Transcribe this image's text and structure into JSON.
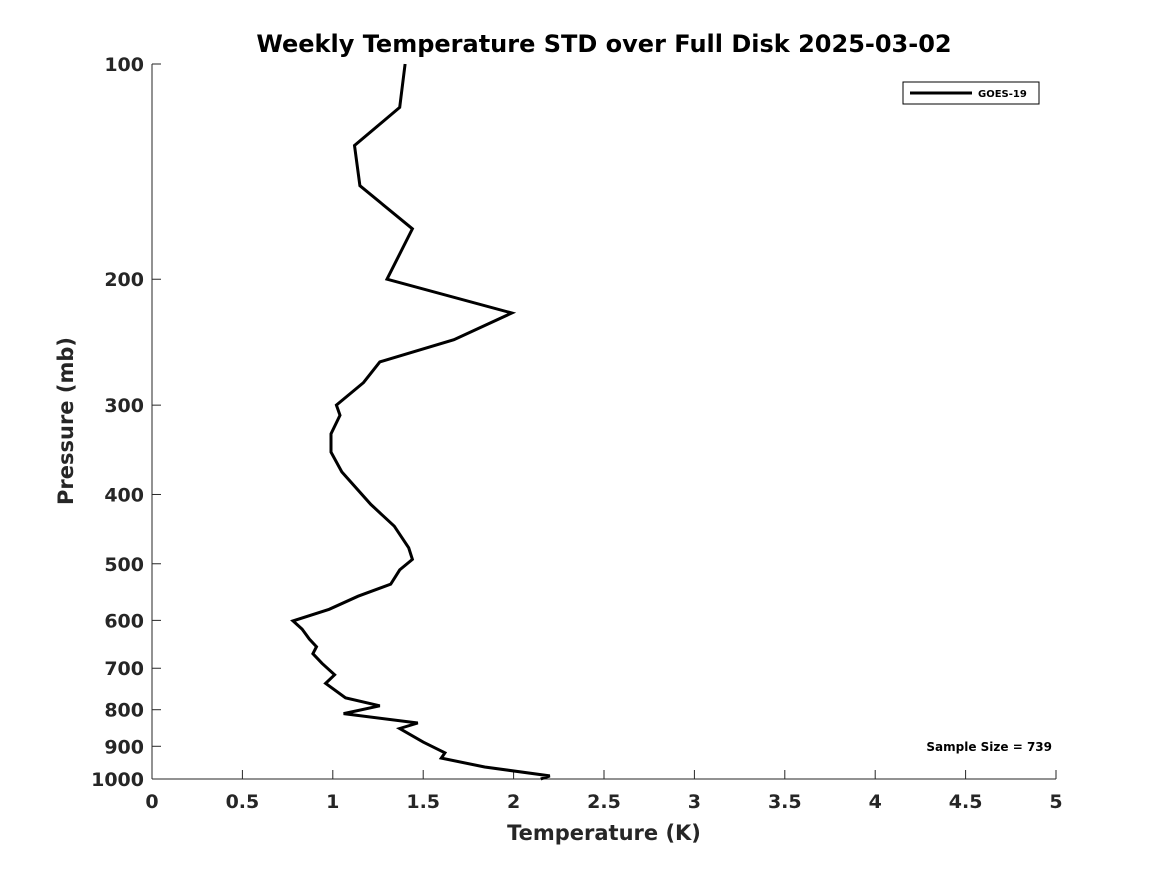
{
  "chart_data": {
    "type": "line",
    "title": "Weekly Temperature STD over Full Disk 2025-03-02",
    "xlabel": "Temperature (K)",
    "ylabel": "Pressure (mb)",
    "xlim": [
      0,
      5
    ],
    "ylim": [
      100,
      1000
    ],
    "y_scale": "log",
    "y_reversed": true,
    "grid": false,
    "x_ticks": [
      0,
      0.5,
      1,
      1.5,
      2,
      2.5,
      3,
      3.5,
      4,
      4.5,
      5
    ],
    "x_tick_labels": [
      "0",
      "0.5",
      "1",
      "1.5",
      "2",
      "2.5",
      "3",
      "3.5",
      "4",
      "4.5",
      "5"
    ],
    "y_ticks": [
      100,
      200,
      300,
      400,
      500,
      600,
      700,
      800,
      900,
      1000
    ],
    "y_tick_labels": [
      "100",
      "200",
      "300",
      "400",
      "500",
      "600",
      "700",
      "800",
      "900",
      "1000"
    ],
    "legend": {
      "location": "top-right",
      "entries": [
        "GOES-19"
      ]
    },
    "annotation": "Sample Size = 739",
    "line_color": "#000000",
    "series": [
      {
        "name": "GOES-19",
        "x": [
          1.4,
          1.37,
          1.12,
          1.15,
          1.44,
          1.3,
          1.99,
          1.67,
          1.26,
          1.17,
          1.02,
          1.04,
          0.99,
          0.99,
          1.05,
          1.21,
          1.34,
          1.42,
          1.44,
          1.37,
          1.32,
          1.14,
          0.98,
          0.78,
          0.83,
          0.87,
          0.91,
          0.89,
          0.94,
          1.01,
          0.96,
          1.07,
          1.26,
          1.06,
          1.47,
          1.37,
          1.5,
          1.62,
          1.6,
          1.84,
          2.2,
          2.15
        ],
        "y": [
          100,
          115,
          130,
          148,
          170,
          200,
          223,
          243,
          261,
          279,
          300,
          310,
          329,
          349,
          372,
          413,
          443,
          475,
          493,
          510,
          534,
          555,
          579,
          601,
          617,
          637,
          653,
          668,
          689,
          715,
          735,
          770,
          790,
          810,
          835,
          850,
          888,
          919,
          935,
          962,
          990,
          1000
        ]
      }
    ]
  }
}
